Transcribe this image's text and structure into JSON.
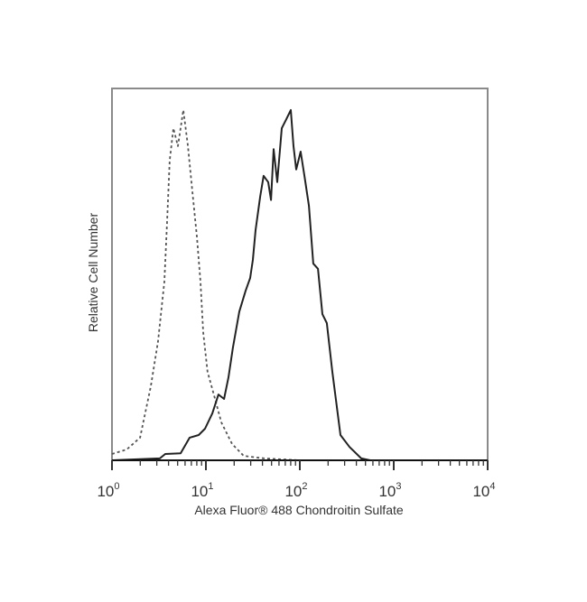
{
  "chart_data": {
    "type": "line",
    "title": "",
    "xlabel": "Alexa Fluor® 488 Chondroitin Sulfate",
    "ylabel": "Relative Cell Number",
    "x_scale": "log",
    "xlim": [
      1,
      10000
    ],
    "ylim": [
      0,
      100
    ],
    "grid": false,
    "legend": "none",
    "x_tick_labels": [
      {
        "base": "10",
        "exp": "0"
      },
      {
        "base": "10",
        "exp": "1"
      },
      {
        "base": "10",
        "exp": "2"
      },
      {
        "base": "10",
        "exp": "3"
      },
      {
        "base": "10",
        "exp": "4"
      }
    ],
    "x_tick_values": [
      1,
      10,
      100,
      1000,
      10000
    ],
    "series": [
      {
        "style": "dashed",
        "color": "#555555",
        "x": [
          1.0,
          1.43,
          1.99,
          2.59,
          3.09,
          3.61,
          3.86,
          4.12,
          4.51,
          5.03,
          5.75,
          6.43,
          7.17,
          8.01,
          8.75,
          9.36,
          10.4,
          12.2,
          14.6,
          19.0,
          25.3,
          42,
          100,
          1000,
          10000
        ],
        "y": [
          1.7,
          2.9,
          6.1,
          19.9,
          32,
          48,
          64,
          80.6,
          89.3,
          84.5,
          94.2,
          84.5,
          72.3,
          60.2,
          48,
          34.5,
          23.8,
          17.5,
          10.2,
          4.4,
          1.2,
          0.5,
          0,
          0,
          0
        ]
      },
      {
        "style": "solid",
        "color": "#222222",
        "x": [
          1.0,
          3.23,
          3.69,
          5.38,
          6.71,
          8.37,
          9.78,
          11.7,
          13.6,
          15.6,
          17.4,
          19.4,
          22.7,
          26.5,
          29.6,
          31.6,
          33.8,
          37.8,
          41.2,
          46.1,
          49.3,
          52.6,
          57.5,
          64.2,
          71.7,
          80.1,
          85.7,
          91.5,
          102,
          112,
          125,
          139,
          156,
          174,
          194,
          222,
          271,
          338,
          451,
          562,
          10000
        ],
        "y": [
          0,
          0.5,
          1.7,
          1.9,
          6.1,
          6.8,
          8.5,
          12.6,
          17.7,
          16.5,
          22.3,
          30.3,
          40.0,
          45.6,
          49.0,
          53.9,
          61.9,
          70.9,
          76.5,
          74.8,
          70.0,
          83.7,
          74.8,
          89.3,
          91.7,
          94.2,
          84.5,
          78.2,
          83.0,
          76.5,
          68.4,
          52.9,
          51.5,
          39.3,
          36.9,
          23.8,
          6.8,
          3.6,
          0.5,
          0,
          0
        ]
      }
    ]
  }
}
